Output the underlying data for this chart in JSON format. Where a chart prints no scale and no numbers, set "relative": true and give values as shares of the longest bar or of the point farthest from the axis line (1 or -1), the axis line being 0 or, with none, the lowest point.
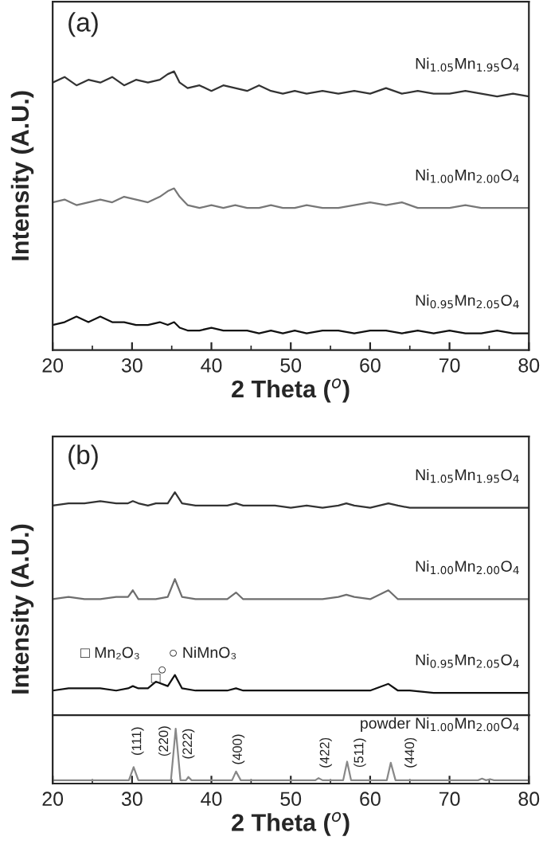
{
  "chart_data": [
    {
      "type": "line",
      "title": "(a)",
      "xlabel": "2 Theta ($^{o}$)",
      "ylabel": "Intensity (A.U.)",
      "relative": true,
      "xlim": [
        20,
        80
      ],
      "xticks": [
        20,
        30,
        40,
        50,
        60,
        70,
        80
      ],
      "tick_labels": "x",
      "series": [
        {
          "name": "Ni$_{1.05}$Mn$_{1.95}$O$_{4}$",
          "color": "#333333",
          "x": [
            20,
            21.5,
            23,
            24.5,
            26,
            27.5,
            29,
            30.5,
            32,
            33.5,
            34.5,
            35.3,
            36,
            37,
            38.5,
            40,
            41.5,
            43,
            44.5,
            46,
            47.5,
            49,
            50.5,
            52,
            54,
            56,
            58,
            60,
            62,
            64,
            66,
            68,
            70,
            72,
            74,
            76,
            78,
            80
          ],
          "values": [
            0.96,
            0.98,
            0.95,
            0.97,
            0.96,
            0.98,
            0.95,
            0.97,
            0.96,
            0.97,
            0.99,
            1.0,
            0.96,
            0.94,
            0.95,
            0.93,
            0.95,
            0.94,
            0.93,
            0.95,
            0.93,
            0.92,
            0.93,
            0.92,
            0.93,
            0.92,
            0.93,
            0.92,
            0.94,
            0.92,
            0.93,
            0.92,
            0.92,
            0.93,
            0.92,
            0.91,
            0.92,
            0.91
          ]
        },
        {
          "name": "Ni$_{1.00}$Mn$_{2.00}$O$_{4}$",
          "color": "#777777",
          "x": [
            20,
            21.5,
            23,
            24.5,
            26,
            27.5,
            29,
            30.5,
            32,
            33.5,
            34.5,
            35.3,
            36,
            37,
            38.5,
            40,
            41.5,
            43,
            44.5,
            46,
            47.5,
            49,
            50.5,
            52,
            54,
            56,
            58,
            60,
            62,
            64,
            66,
            68,
            70,
            72,
            74,
            76,
            78,
            80
          ],
          "values": [
            0.53,
            0.54,
            0.52,
            0.53,
            0.54,
            0.53,
            0.55,
            0.54,
            0.53,
            0.55,
            0.57,
            0.58,
            0.55,
            0.52,
            0.51,
            0.52,
            0.51,
            0.52,
            0.51,
            0.51,
            0.52,
            0.51,
            0.51,
            0.52,
            0.51,
            0.51,
            0.52,
            0.53,
            0.52,
            0.53,
            0.51,
            0.51,
            0.51,
            0.52,
            0.51,
            0.51,
            0.51,
            0.51
          ]
        },
        {
          "name": "Ni$_{0.95}$Mn$_{2.05}$O$_{4}$",
          "color": "#111111",
          "x": [
            20,
            21.5,
            23,
            24.5,
            26,
            27.5,
            29,
            30.5,
            32,
            33.5,
            34.5,
            35.3,
            36,
            37,
            38.5,
            40,
            41.5,
            43,
            44.5,
            46,
            47.5,
            49,
            50.5,
            52,
            54,
            56,
            58,
            60,
            62,
            64,
            66,
            68,
            70,
            72,
            74,
            76,
            78,
            80
          ],
          "values": [
            0.09,
            0.1,
            0.12,
            0.1,
            0.12,
            0.1,
            0.1,
            0.09,
            0.09,
            0.1,
            0.09,
            0.1,
            0.08,
            0.07,
            0.07,
            0.08,
            0.07,
            0.07,
            0.07,
            0.06,
            0.07,
            0.06,
            0.07,
            0.06,
            0.07,
            0.07,
            0.06,
            0.07,
            0.07,
            0.06,
            0.07,
            0.06,
            0.07,
            0.06,
            0.06,
            0.07,
            0.06,
            0.06
          ]
        }
      ]
    },
    {
      "type": "line",
      "title": "(b)",
      "ylabel": "Intensity (A.U.)",
      "relative": true,
      "xlim": [
        20,
        80
      ],
      "tick_labels": false,
      "annotations": [
        "□ Mn₂O₃",
        "○ NiMnO₃",
        "□",
        "○"
      ],
      "series": [
        {
          "name": "Ni$_{1.05}$Mn$_{1.95}$O$_{4}$",
          "color": "#333333",
          "x": [
            20,
            22,
            24,
            26,
            28,
            29.5,
            30.1,
            30.8,
            32,
            33,
            34.5,
            35.4,
            36.3,
            38,
            40,
            42,
            43.1,
            44,
            46,
            48,
            50,
            52,
            54,
            56,
            57,
            58,
            60,
            62.3,
            63.5,
            65,
            68,
            71,
            74,
            77,
            80
          ],
          "values": [
            0.94,
            0.95,
            0.95,
            0.96,
            0.95,
            0.95,
            0.96,
            0.95,
            0.94,
            0.95,
            0.95,
            1.0,
            0.95,
            0.94,
            0.94,
            0.94,
            0.95,
            0.94,
            0.94,
            0.94,
            0.93,
            0.94,
            0.93,
            0.94,
            0.95,
            0.94,
            0.93,
            0.95,
            0.94,
            0.93,
            0.93,
            0.93,
            0.93,
            0.93,
            0.93
          ]
        },
        {
          "name": "Ni$_{1.00}$Mn$_{2.00}$O$_{4}$",
          "color": "#6e6e6e",
          "x": [
            20,
            22,
            24,
            26,
            28,
            29.5,
            30.1,
            30.8,
            32,
            33,
            34.5,
            35.4,
            36.3,
            38,
            40,
            42,
            43.1,
            44,
            46,
            48,
            50,
            52,
            54,
            56,
            57,
            58,
            60,
            62.3,
            63.5,
            65,
            68,
            71,
            74,
            77,
            80
          ],
          "values": [
            0.52,
            0.53,
            0.52,
            0.52,
            0.53,
            0.53,
            0.56,
            0.52,
            0.52,
            0.52,
            0.53,
            0.61,
            0.53,
            0.52,
            0.52,
            0.52,
            0.55,
            0.52,
            0.52,
            0.52,
            0.52,
            0.52,
            0.52,
            0.53,
            0.54,
            0.53,
            0.52,
            0.56,
            0.52,
            0.52,
            0.52,
            0.52,
            0.52,
            0.52,
            0.52
          ]
        },
        {
          "name": "Ni$_{0.95}$Mn$_{2.05}$O$_{4}$",
          "color": "#111111",
          "x": [
            20,
            22,
            24,
            26,
            28,
            29.5,
            30.1,
            30.8,
            32,
            33,
            34.5,
            35.4,
            36.3,
            38,
            40,
            42,
            43.1,
            44,
            46,
            48,
            50,
            52,
            54,
            56,
            57,
            58,
            60,
            62.3,
            63.5,
            65,
            68,
            71,
            74,
            77,
            80
          ],
          "values": [
            0.11,
            0.12,
            0.12,
            0.12,
            0.11,
            0.12,
            0.13,
            0.12,
            0.12,
            0.15,
            0.13,
            0.18,
            0.12,
            0.11,
            0.11,
            0.11,
            0.12,
            0.11,
            0.11,
            0.11,
            0.11,
            0.11,
            0.11,
            0.11,
            0.11,
            0.11,
            0.11,
            0.14,
            0.11,
            0.11,
            0.1,
            0.1,
            0.1,
            0.1,
            0.1
          ]
        }
      ]
    },
    {
      "type": "line",
      "xlabel": "2 Theta ($^{o}$)",
      "relative": true,
      "xlim": [
        20,
        80
      ],
      "xticks": [
        20,
        30,
        40,
        50,
        60,
        70,
        80
      ],
      "tick_labels": "x",
      "annotations": [
        "(111)",
        "(220)",
        "(222)",
        "(400)",
        "(422)",
        "(511)",
        "(440)"
      ],
      "series": [
        {
          "name": "powder Ni$_{1.00}$Mn$_{2.00}$O$_{4}$",
          "color": "#888888",
          "x": [
            20,
            25,
            29.6,
            30.2,
            30.8,
            34.9,
            35.5,
            36.1,
            36.8,
            37.1,
            37.5,
            42.6,
            43.1,
            43.7,
            53.1,
            53.5,
            54,
            56.6,
            57.1,
            57.6,
            62.1,
            62.6,
            63.2,
            70,
            73.6,
            74.1,
            74.6,
            75.1,
            75.6,
            80
          ],
          "values": [
            0.06,
            0.06,
            0.06,
            0.3,
            0.06,
            0.06,
            1.0,
            0.06,
            0.06,
            0.12,
            0.06,
            0.06,
            0.22,
            0.06,
            0.06,
            0.1,
            0.06,
            0.06,
            0.4,
            0.06,
            0.06,
            0.38,
            0.06,
            0.06,
            0.06,
            0.09,
            0.06,
            0.08,
            0.06,
            0.06
          ]
        }
      ]
    }
  ]
}
